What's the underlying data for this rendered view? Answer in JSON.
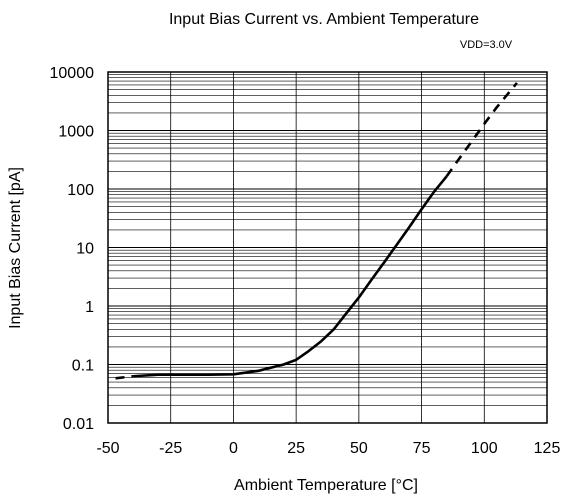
{
  "chart_data": {
    "type": "line",
    "title": "Input Bias Current vs. Ambient Temperature",
    "annotation": "VDD=3.0V",
    "xlabel": "Ambient Temperature [°C]",
    "ylabel": "Input Bias Current [pA]",
    "xlim": [
      -50,
      125
    ],
    "ylim": [
      0.01,
      10000
    ],
    "yscale": "log",
    "grid": true,
    "x_ticks": [
      -50,
      -25,
      0,
      25,
      50,
      75,
      100,
      125
    ],
    "x_tick_labels": [
      "-50",
      "-25",
      "0",
      "25",
      "50",
      "75",
      "100",
      "125"
    ],
    "y_ticks": [
      0.01,
      0.1,
      1,
      10,
      100,
      1000,
      10000
    ],
    "y_tick_labels": [
      "0.01",
      "0.1",
      "1",
      "10",
      "100",
      "1000",
      "10000"
    ],
    "series": [
      {
        "style": "solid",
        "x": [
          -40,
          -30,
          -20,
          -10,
          0,
          10,
          20,
          25,
          30,
          35,
          40,
          45,
          50,
          55,
          60,
          65,
          70,
          75,
          80,
          85
        ],
        "y": [
          0.063,
          0.067,
          0.067,
          0.067,
          0.068,
          0.078,
          0.1,
          0.12,
          0.17,
          0.25,
          0.4,
          0.75,
          1.4,
          2.8,
          5.5,
          11,
          22,
          45,
          90,
          165
        ]
      },
      {
        "style": "dashed",
        "x": [
          -47,
          -40
        ],
        "y": [
          0.058,
          0.063
        ]
      },
      {
        "style": "dashed",
        "x": [
          85,
          90,
          95,
          100,
          105,
          113
        ],
        "y": [
          165,
          330,
          650,
          1300,
          2500,
          6500
        ]
      }
    ]
  }
}
